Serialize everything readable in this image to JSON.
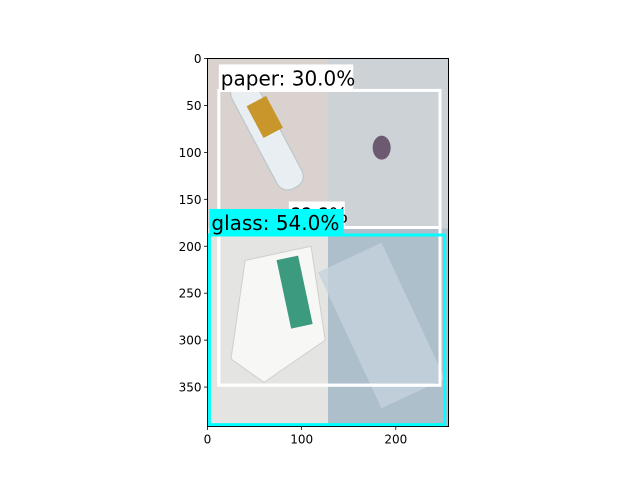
{
  "chart_data": {
    "type": "image-with-detections",
    "title": "",
    "xlabel": "",
    "ylabel": "",
    "xlim": [
      0,
      256
    ],
    "ylim": [
      392,
      0
    ],
    "xticks": [
      0,
      100,
      200
    ],
    "yticks": [
      0,
      50,
      100,
      150,
      200,
      250,
      300,
      350
    ],
    "xtick_labels": [
      "0",
      "100",
      "200"
    ],
    "ytick_labels": [
      "0",
      "50",
      "100",
      "150",
      "200",
      "250",
      "300",
      "350"
    ],
    "grid": false,
    "image_tiles": [
      {
        "name": "plastic-bottle-photo",
        "x": [
          0,
          128
        ],
        "y": [
          0,
          181
        ],
        "color": "#d9d2cf"
      },
      {
        "name": "metal-can-photo",
        "x": [
          128,
          256
        ],
        "y": [
          0,
          181
        ],
        "color": "#cdd2d6"
      },
      {
        "name": "white-jug-photo",
        "x": [
          0,
          128
        ],
        "y": [
          181,
          392
        ],
        "color": "#e4e4e2"
      },
      {
        "name": "glass-bottle-photo",
        "x": [
          128,
          256
        ],
        "y": [
          181,
          392
        ],
        "color": "#aebfcc"
      }
    ],
    "detections": [
      {
        "label": "paper: 30.0%",
        "x": [
          12,
          247
        ],
        "y": [
          34,
          348
        ],
        "color": "#ffffff"
      },
      {
        "label": "glass: 54.0%",
        "x": [
          2,
          252
        ],
        "y": [
          188,
          390
        ],
        "color": "#00ffff"
      },
      {
        "label": "??.?%",
        "x": [
          12,
          247
        ],
        "y": [
          180,
          348
        ],
        "color": "#ffffff",
        "occluded": true
      }
    ]
  }
}
